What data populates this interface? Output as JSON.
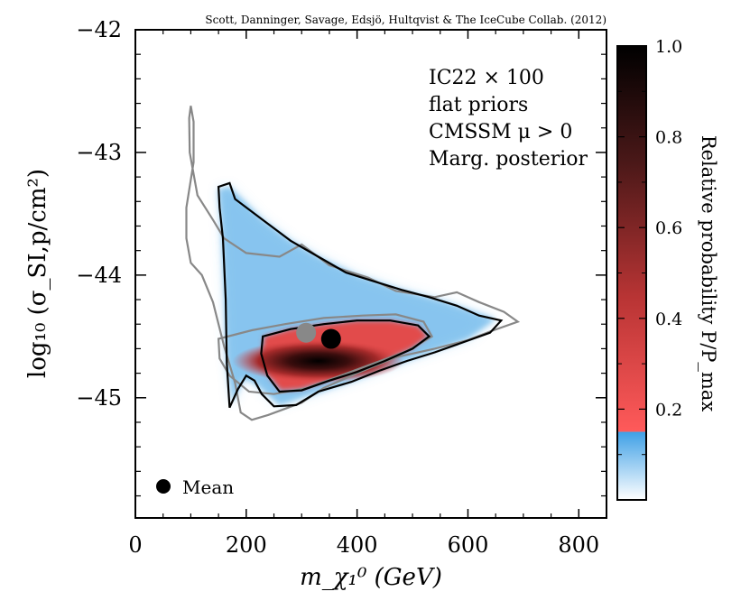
{
  "chart_data": {
    "type": "heatmap",
    "credit": "Scott, Danninger, Savage, Edsjö, Hultqvist & The IceCube Collab. (2012)",
    "annotation_lines": [
      "IC22 × 100",
      "flat priors",
      "CMSSM μ > 0",
      "Marg. posterior"
    ],
    "xlabel": "m_χ₁⁰ (GeV)",
    "ylabel": "log₁₀ (σ_SI,p/cm²)",
    "xlim": [
      0,
      850
    ],
    "ylim": [
      -45.98,
      -42
    ],
    "x_ticks": [
      0,
      200,
      400,
      600,
      800
    ],
    "x_tick_labels": [
      "0",
      "200",
      "400",
      "600",
      "800"
    ],
    "y_ticks": [
      -42,
      -43,
      -44,
      -45
    ],
    "y_tick_labels": [
      "−42",
      "−43",
      "−44",
      "−45"
    ],
    "colorbar": {
      "label": "Relative probability P/P_max",
      "ticks": [
        1.0,
        0.8,
        0.6,
        0.4,
        0.2
      ],
      "tick_labels": [
        "1.0",
        "0.8",
        "0.6",
        "0.4",
        "0.2"
      ],
      "range": [
        0,
        1
      ],
      "threshold": 0.15,
      "low_colors": [
        "#ffffff",
        "#3fa0e6"
      ],
      "high_colors": [
        "#ff5a5a",
        "#000000"
      ]
    },
    "legend": [
      {
        "label": "Mean",
        "marker": "black-dot",
        "position": "bottom-left"
      }
    ],
    "mean_points": [
      {
        "x": 353,
        "y": -44.52,
        "color": "#000000"
      },
      {
        "x": 308,
        "y": -44.47,
        "color": "#888888"
      }
    ],
    "contours": {
      "black_outer": [
        [
          150,
          -43.28
        ],
        [
          170,
          -43.25
        ],
        [
          180,
          -43.38
        ],
        [
          230,
          -43.55
        ],
        [
          280,
          -43.72
        ],
        [
          330,
          -43.85
        ],
        [
          380,
          -43.98
        ],
        [
          430,
          -44.05
        ],
        [
          480,
          -44.12
        ],
        [
          530,
          -44.18
        ],
        [
          580,
          -44.25
        ],
        [
          620,
          -44.33
        ],
        [
          660,
          -44.37
        ],
        [
          640,
          -44.47
        ],
        [
          590,
          -44.55
        ],
        [
          540,
          -44.63
        ],
        [
          490,
          -44.7
        ],
        [
          440,
          -44.78
        ],
        [
          390,
          -44.87
        ],
        [
          330,
          -44.95
        ],
        [
          290,
          -45.06
        ],
        [
          250,
          -45.07
        ],
        [
          228,
          -44.97
        ],
        [
          215,
          -44.86
        ],
        [
          200,
          -44.82
        ],
        [
          185,
          -44.93
        ],
        [
          170,
          -45.08
        ],
        [
          165,
          -44.72
        ],
        [
          163,
          -44.2
        ],
        [
          158,
          -43.7
        ],
        [
          152,
          -43.45
        ]
      ],
      "black_inner": [
        [
          230,
          -44.5
        ],
        [
          280,
          -44.44
        ],
        [
          340,
          -44.4
        ],
        [
          400,
          -44.37
        ],
        [
          460,
          -44.37
        ],
        [
          510,
          -44.41
        ],
        [
          530,
          -44.5
        ],
        [
          500,
          -44.6
        ],
        [
          450,
          -44.7
        ],
        [
          400,
          -44.79
        ],
        [
          350,
          -44.86
        ],
        [
          300,
          -44.94
        ],
        [
          260,
          -44.95
        ],
        [
          238,
          -44.82
        ],
        [
          227,
          -44.64
        ]
      ],
      "gray_outer": [
        [
          92,
          -43.45
        ],
        [
          105,
          -43.08
        ],
        [
          105,
          -42.75
        ],
        [
          100,
          -42.62
        ],
        [
          97,
          -42.72
        ],
        [
          98,
          -43.0
        ],
        [
          112,
          -43.35
        ],
        [
          140,
          -43.55
        ],
        [
          160,
          -43.7
        ],
        [
          200,
          -43.82
        ],
        [
          260,
          -43.85
        ],
        [
          300,
          -43.75
        ],
        [
          350,
          -43.92
        ],
        [
          420,
          -44.02
        ],
        [
          470,
          -44.13
        ],
        [
          540,
          -44.18
        ],
        [
          580,
          -44.14
        ],
        [
          620,
          -44.22
        ],
        [
          665,
          -44.3
        ],
        [
          690,
          -44.38
        ],
        [
          640,
          -44.46
        ],
        [
          600,
          -44.53
        ],
        [
          540,
          -44.6
        ],
        [
          470,
          -44.67
        ],
        [
          400,
          -44.8
        ],
        [
          340,
          -44.92
        ],
        [
          300,
          -45.04
        ],
        [
          240,
          -45.14
        ],
        [
          210,
          -45.18
        ],
        [
          190,
          -45.12
        ],
        [
          180,
          -44.88
        ],
        [
          160,
          -44.58
        ],
        [
          140,
          -44.22
        ],
        [
          120,
          -44.0
        ],
        [
          100,
          -43.9
        ],
        [
          92,
          -43.7
        ]
      ],
      "gray_inner": [
        [
          150,
          -44.52
        ],
        [
          210,
          -44.45
        ],
        [
          270,
          -44.4
        ],
        [
          340,
          -44.35
        ],
        [
          410,
          -44.33
        ],
        [
          470,
          -44.32
        ],
        [
          520,
          -44.38
        ],
        [
          535,
          -44.5
        ],
        [
          490,
          -44.62
        ],
        [
          430,
          -44.72
        ],
        [
          370,
          -44.82
        ],
        [
          310,
          -44.92
        ],
        [
          250,
          -44.97
        ],
        [
          205,
          -44.95
        ],
        [
          170,
          -44.82
        ],
        [
          152,
          -44.68
        ]
      ]
    },
    "blue_region": [
      [
        150,
        -43.3
      ],
      [
        170,
        -43.28
      ],
      [
        230,
        -43.55
      ],
      [
        280,
        -43.72
      ],
      [
        330,
        -43.85
      ],
      [
        400,
        -44.0
      ],
      [
        480,
        -44.12
      ],
      [
        560,
        -44.22
      ],
      [
        650,
        -44.36
      ],
      [
        600,
        -44.52
      ],
      [
        500,
        -44.68
      ],
      [
        400,
        -44.85
      ],
      [
        320,
        -44.97
      ],
      [
        260,
        -45.06
      ],
      [
        215,
        -44.88
      ],
      [
        195,
        -44.84
      ],
      [
        175,
        -45.05
      ],
      [
        165,
        -44.7
      ],
      [
        160,
        -44.1
      ],
      [
        155,
        -43.6
      ]
    ],
    "red_region": [
      [
        232,
        -44.5
      ],
      [
        280,
        -44.44
      ],
      [
        340,
        -44.4
      ],
      [
        400,
        -44.37
      ],
      [
        460,
        -44.37
      ],
      [
        510,
        -44.41
      ],
      [
        528,
        -44.5
      ],
      [
        498,
        -44.6
      ],
      [
        448,
        -44.7
      ],
      [
        398,
        -44.79
      ],
      [
        348,
        -44.86
      ],
      [
        298,
        -44.93
      ],
      [
        262,
        -44.94
      ],
      [
        240,
        -44.82
      ],
      [
        229,
        -44.64
      ]
    ],
    "core_peak": {
      "x": 330,
      "y": -44.7,
      "value": 1.0
    }
  }
}
